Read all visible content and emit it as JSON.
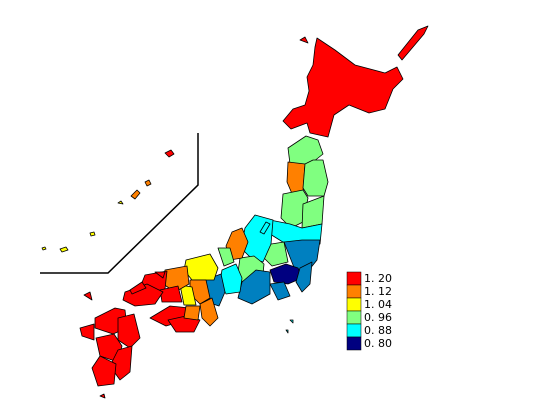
{
  "legend": {
    "items": [
      {
        "label": "1. 20",
        "color": "#ff0000"
      },
      {
        "label": "1. 12",
        "color": "#ff8000"
      },
      {
        "label": "1. 04",
        "color": "#ffff00"
      },
      {
        "label": "0. 96",
        "color": "#80ff80"
      },
      {
        "label": "0. 88",
        "color": "#00ffff"
      },
      {
        "label": "0. 80",
        "color": "#000080"
      }
    ]
  }
}
